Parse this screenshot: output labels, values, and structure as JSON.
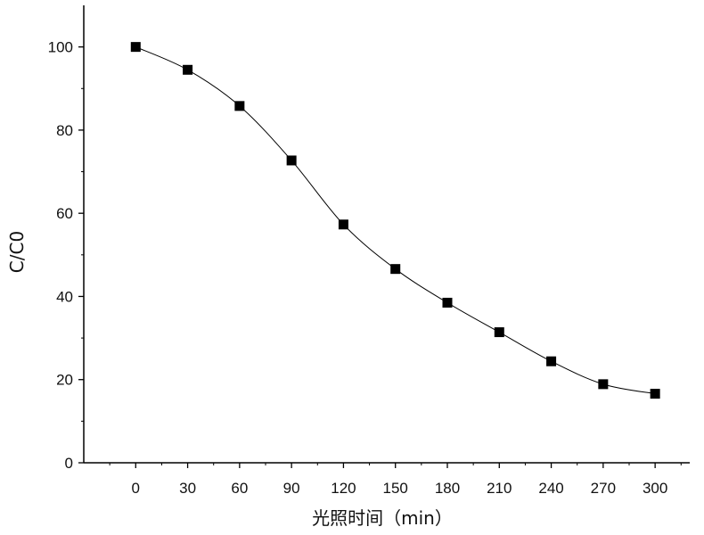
{
  "chart_data": {
    "type": "line",
    "title": "",
    "xlabel": "光照时间（min）",
    "ylabel": "C/C0",
    "x": [
      0,
      30,
      60,
      90,
      120,
      150,
      180,
      210,
      240,
      270,
      300
    ],
    "series": [
      {
        "values": [
          100,
          94.5,
          85.8,
          72.7,
          57.3,
          46.6,
          38.5,
          31.4,
          24.4,
          18.9,
          16.6
        ]
      }
    ],
    "xlim": [
      -30,
      320
    ],
    "ylim": [
      0,
      110
    ],
    "xticks": [
      0,
      30,
      60,
      90,
      120,
      150,
      180,
      210,
      240,
      270,
      300
    ],
    "yticks": [
      0,
      20,
      40,
      60,
      80,
      100
    ],
    "marker": "square",
    "grid": false,
    "colors": {
      "line": "#000000",
      "marker": "#000000",
      "axis": "#000000"
    }
  }
}
